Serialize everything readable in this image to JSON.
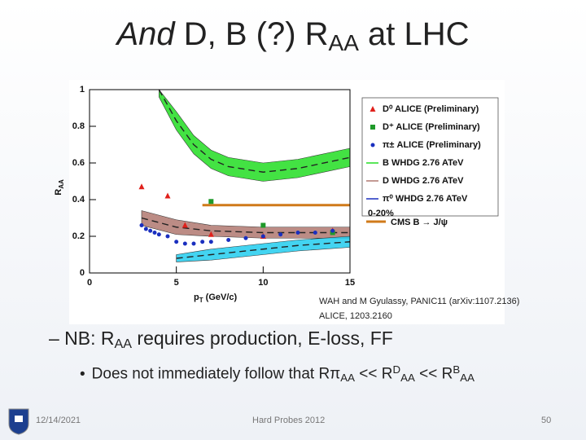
{
  "slide": {
    "title": [
      "And",
      " D, B (?) R",
      "AA",
      " at LHC"
    ],
    "citation": [
      "WAH and M Gyulassy, PANIC11 (arXiv:1107.2136)",
      "ALICE, 1203.2160"
    ],
    "bullet": [
      "– NB: R",
      "AA",
      " requires production, E-loss, FF"
    ],
    "sub_bullet": [
      "•",
      "Does not immediately follow that R",
      "π",
      "AA",
      " << R",
      "D",
      "AA",
      " << R",
      "B",
      "AA"
    ],
    "footer": {
      "date": "12/14/2021",
      "event": "Hard Probes 2012",
      "page": "50"
    }
  },
  "chart_data": {
    "type": "scatter",
    "xlabel": [
      "p",
      "T",
      " (GeV/c)"
    ],
    "ylabel": [
      "R",
      "AA"
    ],
    "xlim": [
      0,
      15
    ],
    "xticks": [
      0,
      5,
      10,
      15
    ],
    "ylim": [
      0,
      1
    ],
    "yticks": [
      0,
      0.2,
      0.4,
      0.6,
      0.8,
      1
    ],
    "legend_note": "0-20%",
    "series": [
      {
        "name": "D⁰ ALICE (Preliminary)",
        "color": "#e0201b",
        "kind": "points",
        "marker": "triangle",
        "x": [
          3,
          4.5,
          5.5,
          7,
          10,
          14
        ],
        "values": [
          0.47,
          0.42,
          0.26,
          0.21,
          0.2,
          0.23
        ]
      },
      {
        "name": "D⁺ ALICE (Preliminary)",
        "color": "#1f9a2a",
        "kind": "points",
        "marker": "square",
        "x": [
          7,
          10,
          14
        ],
        "values": [
          0.39,
          0.26,
          0.22
        ]
      },
      {
        "name": "π± ALICE (Preliminary)",
        "color": "#1a2fbf",
        "kind": "points",
        "marker": "circle",
        "x": [
          3,
          3.25,
          3.5,
          3.75,
          4,
          4.5,
          5,
          5.5,
          6,
          6.5,
          7,
          8,
          9,
          10,
          11,
          12,
          13,
          14
        ],
        "values": [
          0.26,
          0.24,
          0.23,
          0.22,
          0.21,
          0.2,
          0.17,
          0.16,
          0.16,
          0.17,
          0.17,
          0.18,
          0.19,
          0.2,
          0.21,
          0.22,
          0.22,
          0.23
        ]
      },
      {
        "name": "B WHDG 2.76 ATeV",
        "color": "#22dd22",
        "kind": "band",
        "x": [
          4,
          5,
          6,
          7,
          8,
          10,
          12,
          15
        ],
        "values": [
          1,
          0.83,
          0.7,
          0.62,
          0.58,
          0.55,
          0.57,
          0.63
        ],
        "lower": [
          0.96,
          0.78,
          0.65,
          0.57,
          0.53,
          0.5,
          0.52,
          0.58
        ],
        "upper": [
          1,
          0.88,
          0.75,
          0.67,
          0.63,
          0.6,
          0.62,
          0.68
        ]
      },
      {
        "name": "D WHDG 2.76 ATeV",
        "color": "#b07870",
        "kind": "band",
        "x": [
          3,
          5,
          7,
          10,
          12,
          15
        ],
        "values": [
          0.3,
          0.25,
          0.23,
          0.22,
          0.22,
          0.22
        ],
        "lower": [
          0.26,
          0.21,
          0.2,
          0.19,
          0.19,
          0.19
        ],
        "upper": [
          0.34,
          0.29,
          0.26,
          0.25,
          0.25,
          0.25
        ]
      },
      {
        "name": "π⁰ WHDG 2.76 ATeV",
        "color": "#22ccee",
        "kind": "band",
        "x": [
          5,
          7,
          10,
          12,
          15
        ],
        "values": [
          0.08,
          0.1,
          0.13,
          0.15,
          0.17
        ],
        "lower": [
          0.06,
          0.07,
          0.1,
          0.12,
          0.14
        ],
        "upper": [
          0.1,
          0.13,
          0.16,
          0.18,
          0.2
        ]
      },
      {
        "name": "CMS B → J/ψ",
        "color": "#d07a1a",
        "kind": "line",
        "x": [
          6.5,
          15
        ],
        "values": [
          0.37,
          0.37
        ]
      }
    ]
  }
}
